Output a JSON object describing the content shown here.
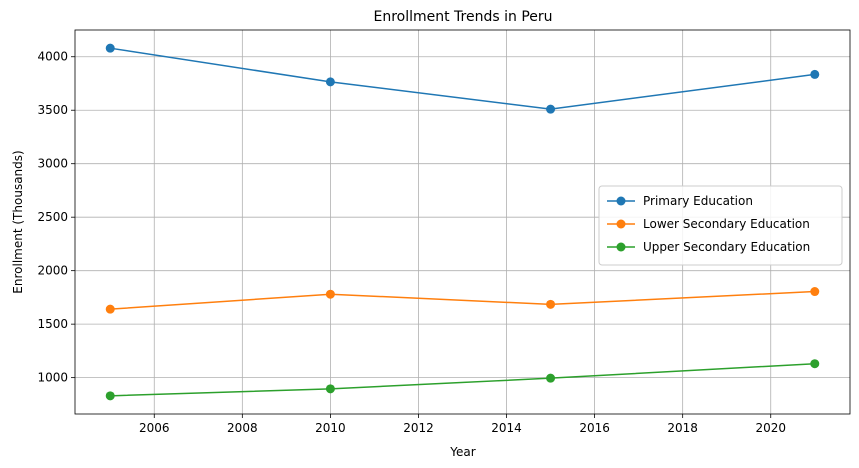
{
  "chart_data": {
    "type": "line",
    "title": "Enrollment Trends in Peru",
    "xlabel": "Year",
    "ylabel": "Enrollment (Thousands)",
    "x": [
      2005,
      2010,
      2015,
      2021
    ],
    "xlim": [
      2004.2,
      2021.8
    ],
    "ylim": [
      660,
      4250
    ],
    "xticks": [
      2006,
      2008,
      2010,
      2012,
      2014,
      2016,
      2018,
      2020
    ],
    "yticks": [
      1000,
      1500,
      2000,
      2500,
      3000,
      3500,
      4000
    ],
    "grid": true,
    "legend_position": "center-right",
    "series": [
      {
        "name": "Primary Education",
        "color": "#1f77b4",
        "values": [
          4080,
          3765,
          3510,
          3835
        ]
      },
      {
        "name": "Lower Secondary Education",
        "color": "#ff7f0e",
        "values": [
          1640,
          1780,
          1685,
          1805
        ]
      },
      {
        "name": "Upper Secondary Education",
        "color": "#2ca02c",
        "values": [
          830,
          895,
          995,
          1130
        ]
      }
    ]
  }
}
